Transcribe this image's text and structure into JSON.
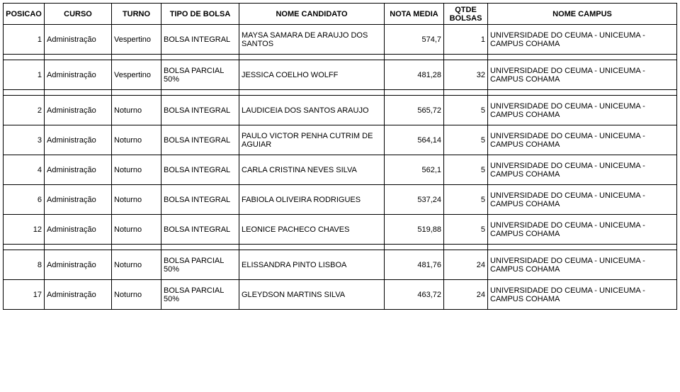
{
  "headers": {
    "posicao": "POSICAO",
    "curso": "CURSO",
    "turno": "TURNO",
    "tipo_bolsa": "TIPO DE BOLSA",
    "nome_candidato": "NOME CANDIDATO",
    "nota_media": "NOTA MEDIA",
    "qtde_bolsas": "QTDE BOLSAS",
    "nome_campus": "NOME CAMPUS"
  },
  "rows": [
    {
      "posicao": "1",
      "curso": "Administração",
      "turno": "Vespertino",
      "tipo_bolsa": "BOLSA INTEGRAL",
      "nome_candidato": "MAYSA SAMARA DE ARAUJO DOS SANTOS",
      "nota_media": "574,7",
      "qtde_bolsas": "1",
      "nome_campus": "UNIVERSIDADE DO CEUMA - UNICEUMA - CAMPUS COHAMA",
      "gap_after": true
    },
    {
      "posicao": "1",
      "curso": "Administração",
      "turno": "Vespertino",
      "tipo_bolsa": "BOLSA PARCIAL 50%",
      "nome_candidato": "JESSICA COELHO WOLFF",
      "nota_media": "481,28",
      "qtde_bolsas": "32",
      "nome_campus": "UNIVERSIDADE DO CEUMA - UNICEUMA - CAMPUS COHAMA",
      "gap_after": true
    },
    {
      "posicao": "2",
      "curso": "Administração",
      "turno": "Noturno",
      "tipo_bolsa": "BOLSA INTEGRAL",
      "nome_candidato": "LAUDICEIA DOS SANTOS ARAUJO",
      "nota_media": "565,72",
      "qtde_bolsas": "5",
      "nome_campus": "UNIVERSIDADE DO CEUMA - UNICEUMA - CAMPUS COHAMA",
      "gap_after": false
    },
    {
      "posicao": "3",
      "curso": "Administração",
      "turno": "Noturno",
      "tipo_bolsa": "BOLSA INTEGRAL",
      "nome_candidato": "PAULO VICTOR PENHA CUTRIM DE AGUIAR",
      "nota_media": "564,14",
      "qtde_bolsas": "5",
      "nome_campus": "UNIVERSIDADE DO CEUMA - UNICEUMA - CAMPUS COHAMA",
      "gap_after": false
    },
    {
      "posicao": "4",
      "curso": "Administração",
      "turno": "Noturno",
      "tipo_bolsa": "BOLSA INTEGRAL",
      "nome_candidato": "CARLA CRISTINA NEVES SILVA",
      "nota_media": "562,1",
      "qtde_bolsas": "5",
      "nome_campus": "UNIVERSIDADE DO CEUMA - UNICEUMA - CAMPUS COHAMA",
      "gap_after": false
    },
    {
      "posicao": "6",
      "curso": "Administração",
      "turno": "Noturno",
      "tipo_bolsa": "BOLSA INTEGRAL",
      "nome_candidato": "FABIOLA OLIVEIRA RODRIGUES",
      "nota_media": "537,24",
      "qtde_bolsas": "5",
      "nome_campus": "UNIVERSIDADE DO CEUMA - UNICEUMA - CAMPUS COHAMA",
      "gap_after": false
    },
    {
      "posicao": "12",
      "curso": "Administração",
      "turno": "Noturno",
      "tipo_bolsa": "BOLSA INTEGRAL",
      "nome_candidato": "LEONICE PACHECO CHAVES",
      "nota_media": "519,88",
      "qtde_bolsas": "5",
      "nome_campus": "UNIVERSIDADE DO CEUMA - UNICEUMA - CAMPUS COHAMA",
      "gap_after": true
    },
    {
      "posicao": "8",
      "curso": "Administração",
      "turno": "Noturno",
      "tipo_bolsa": "BOLSA PARCIAL 50%",
      "nome_candidato": "ELISSANDRA PINTO LISBOA",
      "nota_media": "481,76",
      "qtde_bolsas": "24",
      "nome_campus": "UNIVERSIDADE DO CEUMA - UNICEUMA - CAMPUS COHAMA",
      "gap_after": false
    },
    {
      "posicao": "17",
      "curso": "Administração",
      "turno": "Noturno",
      "tipo_bolsa": "BOLSA PARCIAL 50%",
      "nome_candidato": "GLEYDSON MARTINS SILVA",
      "nota_media": "463,72",
      "qtde_bolsas": "24",
      "nome_campus": "UNIVERSIDADE DO CEUMA - UNICEUMA - CAMPUS COHAMA",
      "gap_after": false
    }
  ]
}
